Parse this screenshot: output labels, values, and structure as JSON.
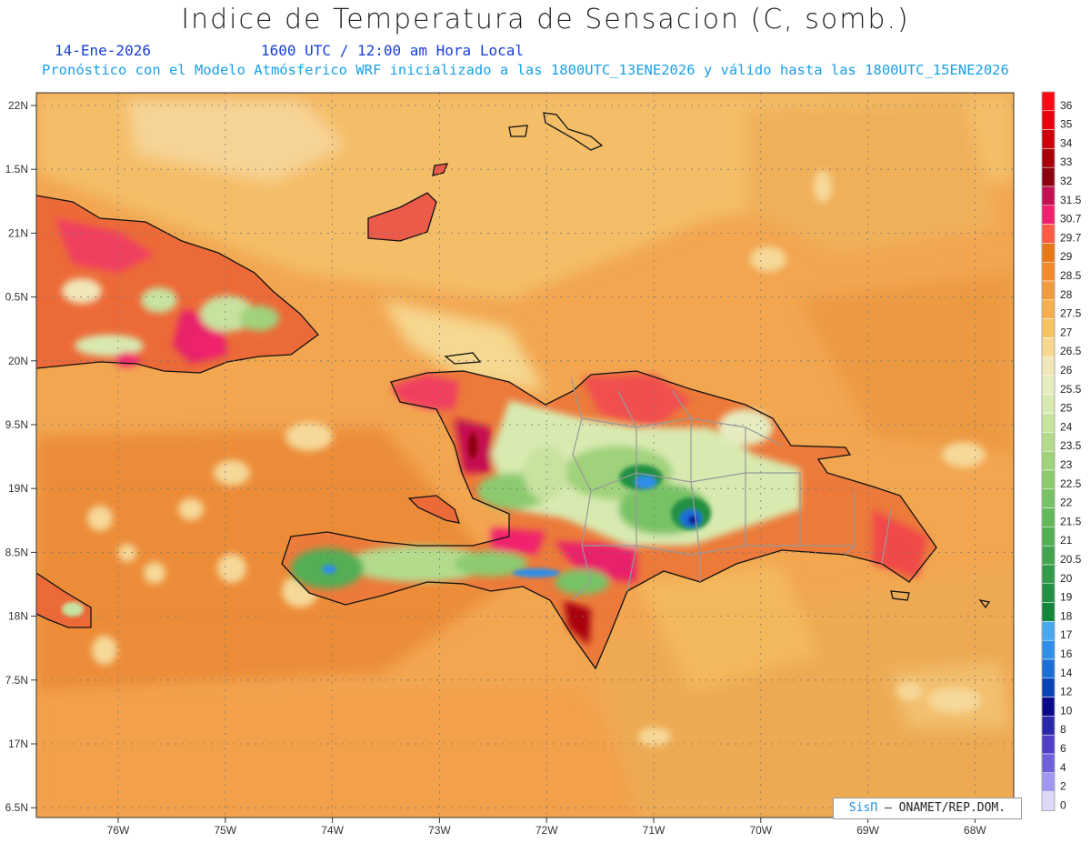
{
  "header": {
    "title": "Indice de Temperatura de Sensacion (C, somb.)",
    "date": "14-Ene-2026",
    "time": "1600 UTC / 12:00 am Hora Local",
    "model_info": "Pronóstico con el Modelo Atmósferico WRF inicializado a las 1800UTC_13ENE2026 y válido hasta las  1800UTC_15ENE2026"
  },
  "map": {
    "lat_labels": [
      "22N",
      "1.5N",
      "21N",
      "0.5N",
      "20N",
      "9.5N",
      "19N",
      "8.5N",
      "18N",
      "7.5N",
      "17N",
      "6.5N"
    ],
    "lon_labels": [
      "76W",
      "75W",
      "74W",
      "73W",
      "72W",
      "71W",
      "70W",
      "69W",
      "68W"
    ]
  },
  "legend": {
    "items": [
      {
        "label": "36",
        "color": "#ff0a14"
      },
      {
        "label": "35",
        "color": "#e8000c"
      },
      {
        "label": "34",
        "color": "#cc000a"
      },
      {
        "label": "33",
        "color": "#a80008"
      },
      {
        "label": "32",
        "color": "#8c0010"
      },
      {
        "label": "31.5",
        "color": "#c41050"
      },
      {
        "label": "30.7",
        "color": "#f0206e"
      },
      {
        "label": "29.7",
        "color": "#ff5a46"
      },
      {
        "label": "29",
        "color": "#e87818"
      },
      {
        "label": "28.5",
        "color": "#f08a2a"
      },
      {
        "label": "28",
        "color": "#f29c42"
      },
      {
        "label": "27.5",
        "color": "#f4b050"
      },
      {
        "label": "27",
        "color": "#f4c464"
      },
      {
        "label": "26.5",
        "color": "#f6d890"
      },
      {
        "label": "26",
        "color": "#f0e6b8"
      },
      {
        "label": "25.5",
        "color": "#e6ecc0"
      },
      {
        "label": "25",
        "color": "#d8eab0"
      },
      {
        "label": "24",
        "color": "#c8e2a0"
      },
      {
        "label": "23.5",
        "color": "#b4da8c"
      },
      {
        "label": "23",
        "color": "#a0d27c"
      },
      {
        "label": "22.5",
        "color": "#8cca70"
      },
      {
        "label": "22",
        "color": "#78c266"
      },
      {
        "label": "21.5",
        "color": "#64b85c"
      },
      {
        "label": "21",
        "color": "#52ae54"
      },
      {
        "label": "20.5",
        "color": "#42a44e"
      },
      {
        "label": "20",
        "color": "#329a48"
      },
      {
        "label": "19",
        "color": "#229042"
      },
      {
        "label": "18",
        "color": "#14863c"
      },
      {
        "label": "17",
        "color": "#4aa8ee"
      },
      {
        "label": "16",
        "color": "#2e8ee8"
      },
      {
        "label": "14",
        "color": "#1a6ed8"
      },
      {
        "label": "12",
        "color": "#0a44b8"
      },
      {
        "label": "10",
        "color": "#0a0a88"
      },
      {
        "label": "8",
        "color": "#2a2aa8"
      },
      {
        "label": "6",
        "color": "#5040c8"
      },
      {
        "label": "4",
        "color": "#7060d8"
      },
      {
        "label": "2",
        "color": "#a098f0"
      },
      {
        "label": "0",
        "color": "#dcdaf8"
      }
    ]
  },
  "credit": {
    "brand": "SisΠ",
    "text": " – ONAMET/REP.DOM."
  }
}
